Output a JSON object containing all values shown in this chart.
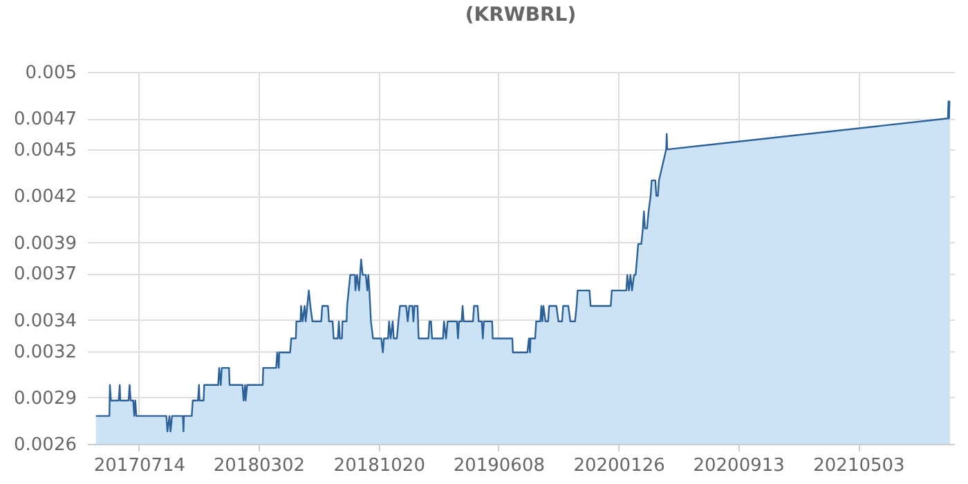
{
  "chart_data": {
    "type": "area",
    "title": "(KRWBRL)",
    "x": [
      "2017-04-22",
      "2017-05-18",
      "2017-05-19",
      "2017-05-21",
      "2017-06-05",
      "2017-06-07",
      "2017-06-08",
      "2017-06-24",
      "2017-06-26",
      "2017-06-28",
      "2017-07-03",
      "2017-07-05",
      "2017-07-07",
      "2017-07-09",
      "2017-09-05",
      "2017-09-07",
      "2017-09-11",
      "2017-09-13",
      "2017-09-16",
      "2017-10-07",
      "2017-10-08",
      "2017-10-09",
      "2017-10-24",
      "2017-10-26",
      "2017-11-05",
      "2017-11-07",
      "2017-11-08",
      "2017-11-16",
      "2017-11-17",
      "2017-12-14",
      "2017-12-16",
      "2017-12-19",
      "2017-12-21",
      "2018-01-04",
      "2018-01-05",
      "2018-01-30",
      "2018-02-01",
      "2018-02-04",
      "2018-02-05",
      "2018-02-08",
      "2018-03-10",
      "2018-03-11",
      "2018-04-05",
      "2018-04-07",
      "2018-04-10",
      "2018-04-11",
      "2018-05-02",
      "2018-05-04",
      "2018-05-13",
      "2018-05-14",
      "2018-05-22",
      "2018-05-23",
      "2018-05-26",
      "2018-05-30",
      "2018-06-01",
      "2018-06-04",
      "2018-06-07",
      "2018-06-10",
      "2018-06-14",
      "2018-07-01",
      "2018-07-03",
      "2018-07-14",
      "2018-07-16",
      "2018-07-23",
      "2018-07-25",
      "2018-08-02",
      "2018-08-04",
      "2018-08-06",
      "2018-08-10",
      "2018-08-11",
      "2018-08-19",
      "2018-08-20",
      "2018-08-23",
      "2018-08-26",
      "2018-09-04",
      "2018-09-05",
      "2018-09-08",
      "2018-09-12",
      "2018-09-14",
      "2018-09-16",
      "2018-09-19",
      "2018-09-25",
      "2018-09-28",
      "2018-09-30",
      "2018-10-02",
      "2018-10-05",
      "2018-10-09",
      "2018-10-25",
      "2018-10-28",
      "2018-10-30",
      "2018-11-07",
      "2018-11-09",
      "2018-11-12",
      "2018-11-16",
      "2018-11-18",
      "2018-11-24",
      "2018-11-27",
      "2018-11-30",
      "2018-12-12",
      "2018-12-15",
      "2018-12-18",
      "2018-12-24",
      "2018-12-26",
      "2018-12-28",
      "2019-01-03",
      "2019-01-05",
      "2019-01-24",
      "2019-01-26",
      "2019-01-29",
      "2019-01-31",
      "2019-02-21",
      "2019-02-23",
      "2019-02-27",
      "2019-03-02",
      "2019-03-20",
      "2019-03-22",
      "2019-03-24",
      "2019-03-29",
      "2019-03-31",
      "2019-04-02",
      "2019-04-20",
      "2019-04-22",
      "2019-04-29",
      "2019-05-01",
      "2019-05-07",
      "2019-05-09",
      "2019-05-11",
      "2019-05-27",
      "2019-05-28",
      "2019-07-05",
      "2019-07-06",
      "2019-08-03",
      "2019-08-06",
      "2019-08-08",
      "2019-08-09",
      "2019-08-18",
      "2019-08-20",
      "2019-08-28",
      "2019-08-30",
      "2019-09-01",
      "2019-09-03",
      "2019-09-07",
      "2019-09-12",
      "2019-09-14",
      "2019-09-28",
      "2019-10-02",
      "2019-10-09",
      "2019-10-11",
      "2019-10-21",
      "2019-10-25",
      "2019-11-03",
      "2019-11-06",
      "2019-11-08",
      "2019-12-01",
      "2019-12-03",
      "2020-01-11",
      "2020-01-13",
      "2020-02-10",
      "2020-02-12",
      "2020-02-15",
      "2020-02-18",
      "2020-02-21",
      "2020-02-25",
      "2020-02-28",
      "2020-03-04",
      "2020-03-10",
      "2020-03-13",
      "2020-03-15",
      "2020-03-17",
      "2020-03-21",
      "2020-03-24",
      "2020-03-28",
      "2020-03-30",
      "2020-04-06",
      "2020-04-08",
      "2020-04-11",
      "2020-04-13",
      "2020-04-27",
      "2020-04-28",
      "2020-04-29",
      "2021-10-23",
      "2021-10-24",
      "2021-10-25",
      "2021-10-26",
      "2021-10-27"
    ],
    "series": [
      {
        "color": "#2b6099",
        "values": [
          0.00278,
          0.00278,
          0.00298,
          0.00288,
          0.00288,
          0.00298,
          0.00288,
          0.00288,
          0.00298,
          0.00288,
          0.00288,
          0.00278,
          0.00288,
          0.00278,
          0.00278,
          0.00268,
          0.00278,
          0.00268,
          0.00278,
          0.00278,
          0.00268,
          0.00278,
          0.00278,
          0.00288,
          0.00288,
          0.00298,
          0.00288,
          0.00288,
          0.00298,
          0.00298,
          0.00309,
          0.00298,
          0.00309,
          0.00309,
          0.00298,
          0.00298,
          0.00288,
          0.00298,
          0.00288,
          0.00298,
          0.00298,
          0.00309,
          0.00309,
          0.00319,
          0.00309,
          0.00319,
          0.00319,
          0.00328,
          0.00328,
          0.00339,
          0.00339,
          0.00349,
          0.00339,
          0.00349,
          0.00339,
          0.00349,
          0.00359,
          0.00349,
          0.00339,
          0.00339,
          0.00349,
          0.00349,
          0.00339,
          0.00339,
          0.00328,
          0.00328,
          0.00339,
          0.00328,
          0.00328,
          0.00339,
          0.00339,
          0.00349,
          0.00359,
          0.00369,
          0.00369,
          0.00359,
          0.00369,
          0.00359,
          0.00369,
          0.00379,
          0.00369,
          0.00369,
          0.00359,
          0.00369,
          0.00359,
          0.00339,
          0.00328,
          0.00328,
          0.00319,
          0.00328,
          0.00328,
          0.00339,
          0.00328,
          0.00339,
          0.00328,
          0.00328,
          0.00339,
          0.00349,
          0.00349,
          0.00339,
          0.00349,
          0.00349,
          0.00339,
          0.00349,
          0.00349,
          0.00328,
          0.00328,
          0.00339,
          0.00339,
          0.00328,
          0.00328,
          0.00339,
          0.00328,
          0.00339,
          0.00339,
          0.00328,
          0.00339,
          0.00339,
          0.00349,
          0.00339,
          0.00339,
          0.00349,
          0.00349,
          0.00339,
          0.00339,
          0.00328,
          0.00339,
          0.00339,
          0.00328,
          0.00328,
          0.00319,
          0.00319,
          0.00328,
          0.00319,
          0.00328,
          0.00328,
          0.00339,
          0.00339,
          0.00349,
          0.00339,
          0.00349,
          0.00339,
          0.00339,
          0.00349,
          0.00349,
          0.00339,
          0.00339,
          0.00349,
          0.00349,
          0.00339,
          0.00339,
          0.00349,
          0.00359,
          0.00359,
          0.00349,
          0.00349,
          0.00359,
          0.00359,
          0.00369,
          0.00359,
          0.00369,
          0.00359,
          0.00369,
          0.00369,
          0.00389,
          0.00389,
          0.00399,
          0.0041,
          0.00399,
          0.00399,
          0.0041,
          0.0042,
          0.0043,
          0.0043,
          0.0042,
          0.0042,
          0.0043,
          0.0045,
          0.0046,
          0.0045,
          0.0047,
          0.00481,
          0.0047,
          0.00481,
          0.00481
        ]
      }
    ],
    "xlim": [
      "2017-04-05",
      "2021-11-04"
    ],
    "xticks": [
      {
        "value": "2017-07-14",
        "label": "20170714"
      },
      {
        "value": "2018-03-02",
        "label": "20180302"
      },
      {
        "value": "2018-10-20",
        "label": "20181020"
      },
      {
        "value": "2019-06-08",
        "label": "20190608"
      },
      {
        "value": "2020-01-26",
        "label": "20200126"
      },
      {
        "value": "2020-09-13",
        "label": "20200913"
      },
      {
        "value": "2021-05-03",
        "label": "20210503"
      }
    ],
    "ylim": [
      0.0026,
      0.005
    ],
    "yticks": [
      0.0026,
      0.0029,
      0.0032,
      0.0034,
      0.0037,
      0.0039,
      0.0042,
      0.0045,
      0.0047,
      0.005
    ],
    "grid": true,
    "marker": "none",
    "line_style": "solid"
  }
}
